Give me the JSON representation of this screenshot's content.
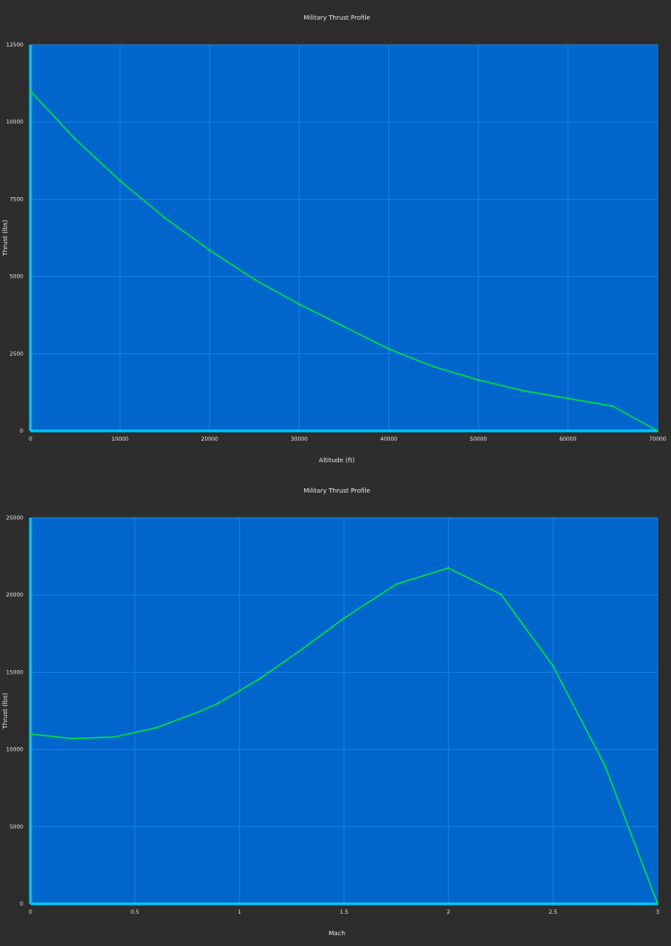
{
  "colors": {
    "background": "#2d2d2d",
    "plot_bg": "#0066cc",
    "grid": "#1a7fe0",
    "axis": "#00c8ff",
    "line": "#00e040",
    "text": "#e6e6e6"
  },
  "chart_data": [
    {
      "type": "line",
      "title": "Military Thrust Profile",
      "xlabel": "Altitude (ft)",
      "ylabel": "Thrust (lbs)",
      "xlim": [
        0,
        70000
      ],
      "ylim": [
        0,
        12500
      ],
      "xticks": [
        0,
        10000,
        20000,
        30000,
        40000,
        50000,
        60000,
        70000
      ],
      "xtick_labels": [
        "0",
        "10000",
        "20000",
        "30000",
        "40000",
        "50000",
        "60000",
        "70000"
      ],
      "yticks": [
        0,
        2500,
        5000,
        7500,
        10000,
        12500
      ],
      "ytick_labels": [
        "0",
        "2500",
        "5000",
        "7500",
        "10000",
        "12500"
      ],
      "grid": true,
      "series": [
        {
          "x": [
            0,
            5000,
            10000,
            15000,
            20000,
            25000,
            30000,
            35000,
            40000,
            45000,
            50000,
            55000,
            60000,
            65000,
            70000
          ],
          "y": [
            11000,
            9450,
            8100,
            6900,
            5850,
            4900,
            4100,
            3380,
            2650,
            2080,
            1650,
            1300,
            1050,
            800,
            0
          ]
        }
      ]
    },
    {
      "type": "line",
      "title": "Military Thrust Profile",
      "xlabel": "Mach",
      "ylabel": "Thrust (lbs)",
      "xlim": [
        0,
        3
      ],
      "ylim": [
        0,
        25000
      ],
      "xticks": [
        0,
        0.5,
        1,
        1.5,
        2,
        2.5,
        3
      ],
      "xtick_labels": [
        "0",
        "0.5",
        "1",
        "1.5",
        "2",
        "2.5",
        "3"
      ],
      "yticks": [
        0,
        5000,
        10000,
        15000,
        20000,
        25000
      ],
      "ytick_labels": [
        "0",
        "5000",
        "10000",
        "15000",
        "20000",
        "25000"
      ],
      "grid": true,
      "series": [
        {
          "x": [
            0,
            0.2,
            0.4,
            0.6,
            0.8,
            0.9,
            1.0,
            1.1,
            1.3,
            1.5,
            1.75,
            2.0,
            2.25,
            2.5,
            2.75,
            3.0
          ],
          "y": [
            11000,
            10700,
            10800,
            11400,
            12400,
            13000,
            13800,
            14600,
            16500,
            18500,
            20700,
            21750,
            20050,
            15400,
            8900,
            0
          ]
        }
      ]
    }
  ]
}
